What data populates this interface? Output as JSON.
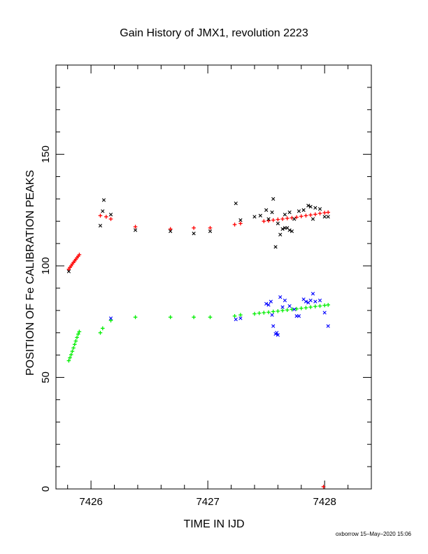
{
  "chart_data": {
    "type": "scatter",
    "title": "Gain History of JMX1, revolution 2223",
    "xlabel": "TIME IN IJD",
    "ylabel": "POSITION OF Fe CALIBRATION PEAKS",
    "xlim": [
      7425.7,
      7428.4
    ],
    "ylim": [
      0,
      190
    ],
    "x_ticks": [
      7426,
      7427,
      7428
    ],
    "y_ticks": [
      0,
      50,
      100,
      150
    ],
    "grid": false,
    "legend": "none",
    "footer": "oxborrow 15–May–2020 15:06",
    "series": [
      {
        "color": "#ff0000",
        "marker": "+",
        "points": [
          [
            7425.81,
            98.5
          ],
          [
            7425.82,
            99.3
          ],
          [
            7425.83,
            100.0
          ],
          [
            7425.84,
            100.8
          ],
          [
            7425.85,
            101.5
          ],
          [
            7425.86,
            102.2
          ],
          [
            7425.87,
            102.9
          ],
          [
            7425.88,
            103.6
          ],
          [
            7425.89,
            104.3
          ],
          [
            7425.9,
            105.0
          ],
          [
            7426.08,
            122.5
          ],
          [
            7426.13,
            122.0
          ],
          [
            7426.17,
            121.0
          ],
          [
            7426.38,
            117.5
          ],
          [
            7426.68,
            116.5
          ],
          [
            7426.88,
            117.0
          ],
          [
            7427.02,
            117.0
          ],
          [
            7427.23,
            118.5
          ],
          [
            7427.28,
            119.0
          ],
          [
            7427.48,
            120.0
          ],
          [
            7427.52,
            120.2
          ],
          [
            7427.56,
            120.5
          ],
          [
            7427.6,
            120.8
          ],
          [
            7427.64,
            121.0
          ],
          [
            7427.68,
            121.3
          ],
          [
            7427.72,
            121.5
          ],
          [
            7427.76,
            121.8
          ],
          [
            7427.8,
            122.2
          ],
          [
            7427.84,
            122.5
          ],
          [
            7427.88,
            122.8
          ],
          [
            7427.92,
            123.1
          ],
          [
            7427.96,
            123.5
          ],
          [
            7428.0,
            123.8
          ],
          [
            7428.03,
            124.0
          ],
          [
            7427.99,
            1.0
          ]
        ]
      },
      {
        "color": "#000000",
        "marker": "x",
        "points": [
          [
            7425.81,
            97.5
          ],
          [
            7426.08,
            118.0
          ],
          [
            7426.1,
            124.5
          ],
          [
            7426.11,
            129.5
          ],
          [
            7426.17,
            123.0
          ],
          [
            7426.38,
            116.0
          ],
          [
            7426.68,
            115.5
          ],
          [
            7426.88,
            114.5
          ],
          [
            7427.02,
            115.5
          ],
          [
            7427.24,
            128.0
          ],
          [
            7427.28,
            120.5
          ],
          [
            7427.4,
            122.0
          ],
          [
            7427.45,
            122.5
          ],
          [
            7427.5,
            125.0
          ],
          [
            7427.52,
            121.0
          ],
          [
            7427.55,
            124.0
          ],
          [
            7427.58,
            108.5
          ],
          [
            7427.6,
            119.0
          ],
          [
            7427.62,
            114.0
          ],
          [
            7427.64,
            116.5
          ],
          [
            7427.66,
            117.0
          ],
          [
            7427.68,
            117.0
          ],
          [
            7427.7,
            116.0
          ],
          [
            7427.72,
            115.5
          ],
          [
            7427.74,
            121.0
          ],
          [
            7427.78,
            124.5
          ],
          [
            7427.82,
            125.0
          ],
          [
            7427.86,
            127.0
          ],
          [
            7427.88,
            126.5
          ],
          [
            7427.9,
            121.0
          ],
          [
            7427.92,
            126.0
          ],
          [
            7427.96,
            125.5
          ],
          [
            7428.0,
            122.0
          ],
          [
            7428.03,
            122.0
          ],
          [
            7427.56,
            130.0
          ],
          [
            7427.66,
            123.0
          ],
          [
            7427.7,
            124.0
          ]
        ]
      },
      {
        "color": "#00ee00",
        "marker": "+",
        "points": [
          [
            7425.81,
            57.5
          ],
          [
            7425.82,
            58.8
          ],
          [
            7425.83,
            60.2
          ],
          [
            7425.84,
            61.7
          ],
          [
            7425.85,
            63.2
          ],
          [
            7425.86,
            64.8
          ],
          [
            7425.87,
            66.3
          ],
          [
            7425.88,
            67.9
          ],
          [
            7425.89,
            69.4
          ],
          [
            7425.9,
            70.5
          ],
          [
            7426.08,
            70.0
          ],
          [
            7426.1,
            72.0
          ],
          [
            7426.17,
            75.5
          ],
          [
            7426.38,
            77.0
          ],
          [
            7426.68,
            77.0
          ],
          [
            7426.88,
            77.0
          ],
          [
            7427.02,
            77.0
          ],
          [
            7427.23,
            77.5
          ],
          [
            7427.28,
            78.0
          ],
          [
            7427.4,
            78.5
          ],
          [
            7427.44,
            78.8
          ],
          [
            7427.48,
            79.0
          ],
          [
            7427.52,
            79.2
          ],
          [
            7427.56,
            79.5
          ],
          [
            7427.6,
            79.7
          ],
          [
            7427.64,
            80.0
          ],
          [
            7427.68,
            80.2
          ],
          [
            7427.72,
            80.5
          ],
          [
            7427.76,
            80.7
          ],
          [
            7427.8,
            81.0
          ],
          [
            7427.84,
            81.2
          ],
          [
            7427.88,
            81.5
          ],
          [
            7427.92,
            81.8
          ],
          [
            7427.96,
            82.0
          ],
          [
            7428.0,
            82.3
          ],
          [
            7428.03,
            82.5
          ]
        ]
      },
      {
        "color": "#0000ff",
        "marker": "x",
        "points": [
          [
            7426.17,
            76.5
          ],
          [
            7427.24,
            76.0
          ],
          [
            7427.28,
            76.5
          ],
          [
            7427.5,
            83.0
          ],
          [
            7427.52,
            82.5
          ],
          [
            7427.54,
            84.0
          ],
          [
            7427.56,
            73.0
          ],
          [
            7427.58,
            69.5
          ],
          [
            7427.6,
            69.0
          ],
          [
            7427.62,
            86.0
          ],
          [
            7427.64,
            81.5
          ],
          [
            7427.66,
            84.5
          ],
          [
            7427.7,
            82.0
          ],
          [
            7427.74,
            80.5
          ],
          [
            7427.76,
            77.5
          ],
          [
            7427.78,
            77.5
          ],
          [
            7427.82,
            85.0
          ],
          [
            7427.84,
            84.0
          ],
          [
            7427.86,
            83.5
          ],
          [
            7427.88,
            84.5
          ],
          [
            7427.9,
            87.5
          ],
          [
            7427.92,
            84.0
          ],
          [
            7427.96,
            84.5
          ],
          [
            7428.0,
            79.0
          ],
          [
            7428.03,
            73.0
          ],
          [
            7427.59,
            70.0
          ],
          [
            7427.55,
            78.0
          ]
        ]
      }
    ]
  }
}
